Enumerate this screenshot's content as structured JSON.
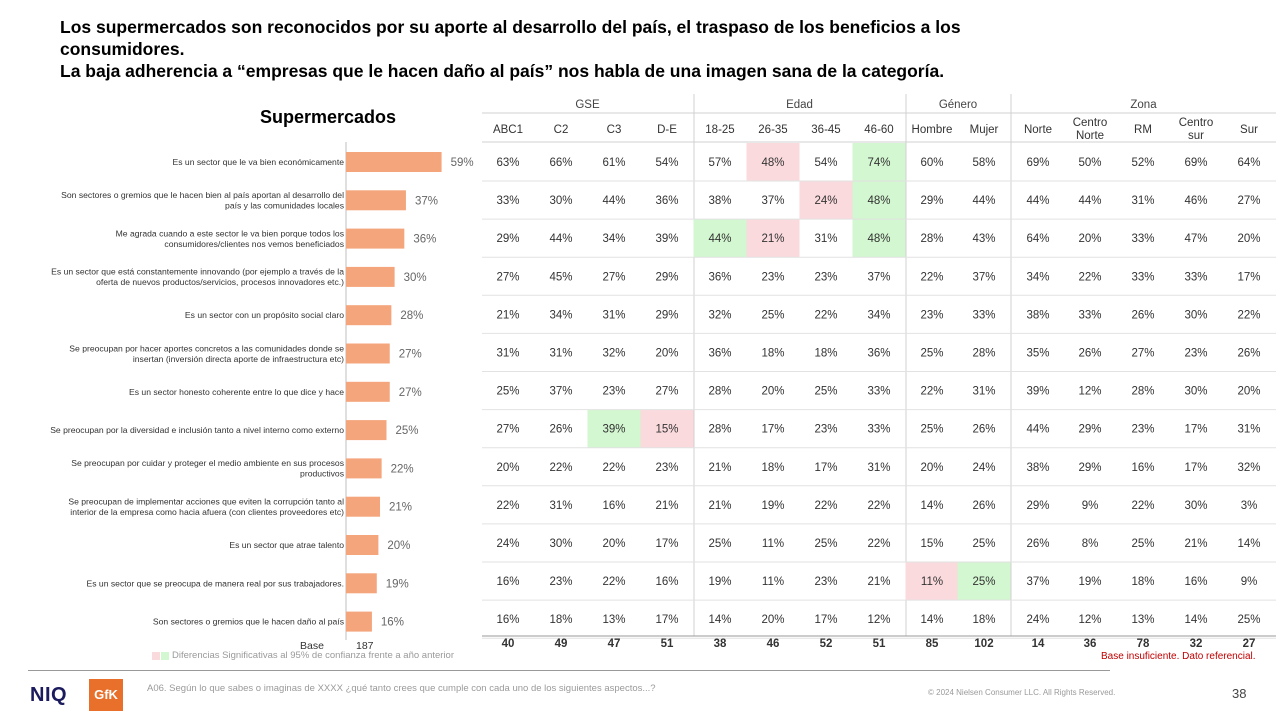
{
  "title_lines": [
    "Los supermercados son reconocidos por su aporte al desarrollo del país, el traspaso de los beneficios a los",
    "consumidores.",
    "La baja adherencia a “empresas que le hacen daño al país” nos habla de una imagen sana de la categoría."
  ],
  "chart_data": {
    "type": "bar",
    "orientation": "horizontal",
    "title": "Supermercados",
    "categories": [
      [
        "Es un sector que le va bien económicamente"
      ],
      [
        "Son sectores o gremios que le hacen bien al país aportan al desarrollo del",
        "país y las comunidades locales"
      ],
      [
        "Me agrada cuando a este sector le va bien porque todos los",
        "consumidores/clientes nos vemos beneficiados"
      ],
      [
        "Es un sector que está constantemente innovando (por ejemplo a través de la",
        "oferta de nuevos productos/servicios, procesos innovadores etc.)"
      ],
      [
        "Es un sector con un propósito social claro"
      ],
      [
        "Se preocupan por hacer aportes concretos a las comunidades donde se",
        "insertan (inversión directa aporte de infraestructura etc)"
      ],
      [
        "Es un sector honesto coherente entre lo que dice y hace"
      ],
      [
        "Se preocupan por la diversidad e inclusión tanto a nivel interno como externo"
      ],
      [
        "Se preocupan por cuidar y proteger el medio ambiente en sus procesos",
        "productivos"
      ],
      [
        "Se preocupan de implementar acciones que eviten la corrupción tanto al",
        "interior de la empresa como hacia afuera (con clientes proveedores etc)"
      ],
      [
        "Es un sector que atrae talento"
      ],
      [
        "Es un sector que se preocupa de manera real por sus trabajadores."
      ],
      [
        "Son sectores o gremios que le hacen daño al país"
      ]
    ],
    "values": [
      59,
      37,
      36,
      30,
      28,
      27,
      27,
      25,
      22,
      21,
      20,
      19,
      16
    ],
    "value_labels": [
      "59%",
      "37%",
      "36%",
      "30%",
      "28%",
      "27%",
      "27%",
      "25%",
      "22%",
      "21%",
      "20%",
      "19%",
      "16%"
    ],
    "bar_color": "#f4a57c",
    "base_label": "Base",
    "base_value": "187",
    "xlim": [
      0,
      100
    ]
  },
  "table": {
    "groups": [
      {
        "label": "GSE",
        "span": 4
      },
      {
        "label": "Edad",
        "span": 4
      },
      {
        "label": "Género",
        "span": 2
      },
      {
        "label": "Zona",
        "span": 5
      }
    ],
    "columns": [
      [
        "ABC1"
      ],
      [
        "C2"
      ],
      [
        "C3"
      ],
      [
        "D-E"
      ],
      [
        "18-25"
      ],
      [
        "26-35"
      ],
      [
        "36-45"
      ],
      [
        "46-60"
      ],
      [
        "Hombre"
      ],
      [
        "Mujer"
      ],
      [
        "Norte"
      ],
      [
        "Centro",
        "Norte"
      ],
      [
        "RM"
      ],
      [
        "Centro",
        "sur"
      ],
      [
        "Sur"
      ]
    ],
    "rows": [
      [
        "63%",
        "66%",
        "61%",
        "54%",
        "57%",
        "48%",
        "54%",
        "74%",
        "60%",
        "58%",
        "69%",
        "50%",
        "52%",
        "69%",
        "64%"
      ],
      [
        "33%",
        "30%",
        "44%",
        "36%",
        "38%",
        "37%",
        "24%",
        "48%",
        "29%",
        "44%",
        "44%",
        "44%",
        "31%",
        "46%",
        "27%"
      ],
      [
        "29%",
        "44%",
        "34%",
        "39%",
        "44%",
        "21%",
        "31%",
        "48%",
        "28%",
        "43%",
        "64%",
        "20%",
        "33%",
        "47%",
        "20%"
      ],
      [
        "27%",
        "45%",
        "27%",
        "29%",
        "36%",
        "23%",
        "23%",
        "37%",
        "22%",
        "37%",
        "34%",
        "22%",
        "33%",
        "33%",
        "17%"
      ],
      [
        "21%",
        "34%",
        "31%",
        "29%",
        "32%",
        "25%",
        "22%",
        "34%",
        "23%",
        "33%",
        "38%",
        "33%",
        "26%",
        "30%",
        "22%"
      ],
      [
        "31%",
        "31%",
        "32%",
        "20%",
        "36%",
        "18%",
        "18%",
        "36%",
        "25%",
        "28%",
        "35%",
        "26%",
        "27%",
        "23%",
        "26%"
      ],
      [
        "25%",
        "37%",
        "23%",
        "27%",
        "28%",
        "20%",
        "25%",
        "33%",
        "22%",
        "31%",
        "39%",
        "12%",
        "28%",
        "30%",
        "20%"
      ],
      [
        "27%",
        "26%",
        "39%",
        "15%",
        "28%",
        "17%",
        "23%",
        "33%",
        "25%",
        "26%",
        "44%",
        "29%",
        "23%",
        "17%",
        "31%"
      ],
      [
        "20%",
        "22%",
        "22%",
        "23%",
        "21%",
        "18%",
        "17%",
        "31%",
        "20%",
        "24%",
        "38%",
        "29%",
        "16%",
        "17%",
        "32%"
      ],
      [
        "22%",
        "31%",
        "16%",
        "21%",
        "21%",
        "19%",
        "22%",
        "22%",
        "14%",
        "26%",
        "29%",
        "9%",
        "22%",
        "30%",
        "3%"
      ],
      [
        "24%",
        "30%",
        "20%",
        "17%",
        "25%",
        "11%",
        "25%",
        "22%",
        "15%",
        "25%",
        "26%",
        "8%",
        "25%",
        "21%",
        "14%"
      ],
      [
        "16%",
        "23%",
        "22%",
        "16%",
        "19%",
        "11%",
        "23%",
        "21%",
        "11%",
        "25%",
        "37%",
        "19%",
        "18%",
        "16%",
        "9%"
      ],
      [
        "16%",
        "18%",
        "13%",
        "17%",
        "14%",
        "20%",
        "17%",
        "12%",
        "14%",
        "18%",
        "24%",
        "12%",
        "13%",
        "14%",
        "25%"
      ]
    ],
    "highlights": [
      {
        "row": 0,
        "col": 5,
        "color": "pink"
      },
      {
        "row": 0,
        "col": 7,
        "color": "green"
      },
      {
        "row": 1,
        "col": 6,
        "color": "pink"
      },
      {
        "row": 1,
        "col": 7,
        "color": "green"
      },
      {
        "row": 2,
        "col": 4,
        "color": "green"
      },
      {
        "row": 2,
        "col": 5,
        "color": "pink"
      },
      {
        "row": 2,
        "col": 7,
        "color": "green"
      },
      {
        "row": 7,
        "col": 2,
        "color": "green"
      },
      {
        "row": 7,
        "col": 3,
        "color": "pink"
      },
      {
        "row": 11,
        "col": 8,
        "color": "pink"
      },
      {
        "row": 11,
        "col": 9,
        "color": "green"
      }
    ],
    "base": [
      "40",
      "49",
      "47",
      "51",
      "38",
      "46",
      "52",
      "51",
      "85",
      "102",
      "14",
      "36",
      "78",
      "32",
      "27"
    ],
    "base_insufficient": [
      10,
      14
    ],
    "colors": {
      "pink": "#fadadd",
      "green": "#d3f7d0",
      "insufficient": "#c00000"
    }
  },
  "legend_note": "Diferencias Significativas al 95% de confianza frente a año anterior",
  "insufficient_note": "Base insuficiente. Dato referencial.",
  "question": "A06. Según lo que sabes o imaginas de XXXX ¿qué tanto crees que cumple con cada uno de los siguientes aspectos...?",
  "copyright": "© 2024 Nielsen Consumer LLC. All Rights Reserved.",
  "page_number": "38",
  "logos": {
    "niq": "NIQ",
    "gfk": "GfK"
  }
}
